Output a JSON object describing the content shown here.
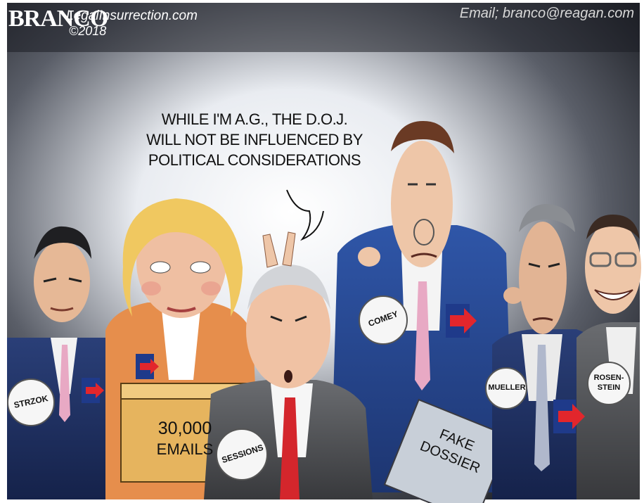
{
  "header": {
    "signature": "BRANCO",
    "site": "LegalInsurrection.com",
    "copyright": "©2018",
    "email": "Email; branco@reagan.com"
  },
  "speech_bubble": {
    "lines": [
      "WHILE I'M A.G., THE D.O.J.",
      "WILL NOT BE INFLUENCED BY",
      "POLITICAL CONSIDERATIONS"
    ]
  },
  "labels": {
    "strzok": "STRZOK",
    "sessions": "SESSIONS",
    "comey": "COMEY",
    "mueller": "MUELLER",
    "rosenstein_line1": "ROSEN-",
    "rosenstein_line2": "STEIN",
    "box_line1": "30,000",
    "box_line2": "EMAILS",
    "dossier_line1": "FAKE",
    "dossier_line2": "DOSSIER"
  },
  "colors": {
    "pin_blue": "#1f3a8a",
    "pin_red": "#e2262c",
    "clinton_jacket": "#e68e4c",
    "comey_suit": "#2f56a8"
  }
}
